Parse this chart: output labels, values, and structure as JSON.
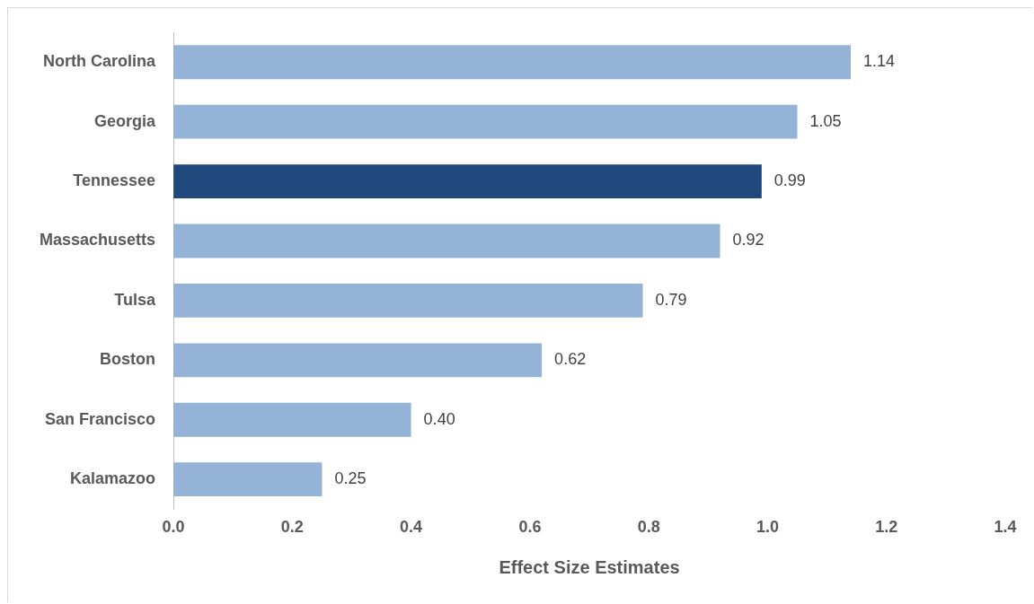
{
  "chart_data": {
    "type": "bar",
    "orientation": "horizontal",
    "xlabel": "Effect Size Estimates",
    "categories": [
      "North Carolina",
      "Georgia",
      "Tennessee",
      "Massachusetts",
      "Tulsa",
      "Boston",
      "San Francisco",
      "Kalamazoo"
    ],
    "values": [
      1.14,
      1.05,
      0.99,
      0.92,
      0.79,
      0.62,
      0.4,
      0.25
    ],
    "colors": [
      "#95b3d7",
      "#95b3d7",
      "#1f497d",
      "#95b3d7",
      "#95b3d7",
      "#95b3d7",
      "#95b3d7",
      "#95b3d7"
    ],
    "value_labels": [
      "1.14",
      "1.05",
      "0.99",
      "0.92",
      "0.79",
      "0.62",
      "0.40",
      "0.25"
    ],
    "xlim": [
      0,
      1.4
    ],
    "xticks": [
      {
        "value": 0,
        "label": "0.0"
      },
      {
        "value": 0.2,
        "label": "0.2"
      },
      {
        "value": 0.4,
        "label": "0.4"
      },
      {
        "value": 0.6,
        "label": "0.6"
      },
      {
        "value": 0.8,
        "label": "0.8"
      },
      {
        "value": 1,
        "label": "1.0"
      },
      {
        "value": 1.2,
        "label": "1.2"
      },
      {
        "value": 1.4,
        "label": "1.4"
      }
    ],
    "grid": false,
    "legend": false
  }
}
